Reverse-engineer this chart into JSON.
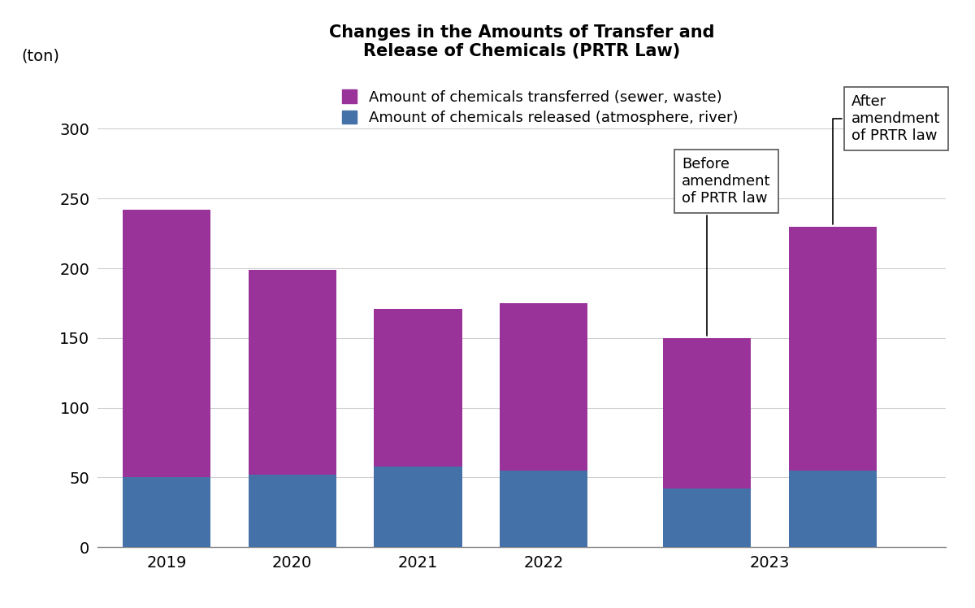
{
  "title": "Changes in the Amounts of Transfer and\nRelease of Chemicals (PRTR Law)",
  "ylabel": "(ton)",
  "released": [
    50,
    52,
    58,
    55,
    42,
    55
  ],
  "transferred": [
    192,
    147,
    113,
    120,
    108,
    175
  ],
  "x_positions": [
    0,
    1,
    2,
    3,
    4.3,
    5.3
  ],
  "x_tick_positions": [
    0,
    1,
    2,
    3,
    4.8
  ],
  "x_tick_labels": [
    "2019",
    "2020",
    "2021",
    "2022",
    "2023"
  ],
  "bar_width": 0.7,
  "released_color": "#4472a8",
  "transferred_color": "#993399",
  "ylim": [
    0,
    340
  ],
  "yticks": [
    0,
    50,
    100,
    150,
    200,
    250,
    300
  ],
  "legend_transferred": "Amount of chemicals transferred (sewer, waste)",
  "legend_released": "Amount of chemicals released (atmosphere, river)",
  "annotation_before": "Before\namendment\nof PRTR law",
  "annotation_after": "After\namendment\nof PRTR law",
  "background_color": "#ffffff",
  "title_fontsize": 15,
  "tick_fontsize": 14,
  "legend_fontsize": 13,
  "annotation_fontsize": 13
}
